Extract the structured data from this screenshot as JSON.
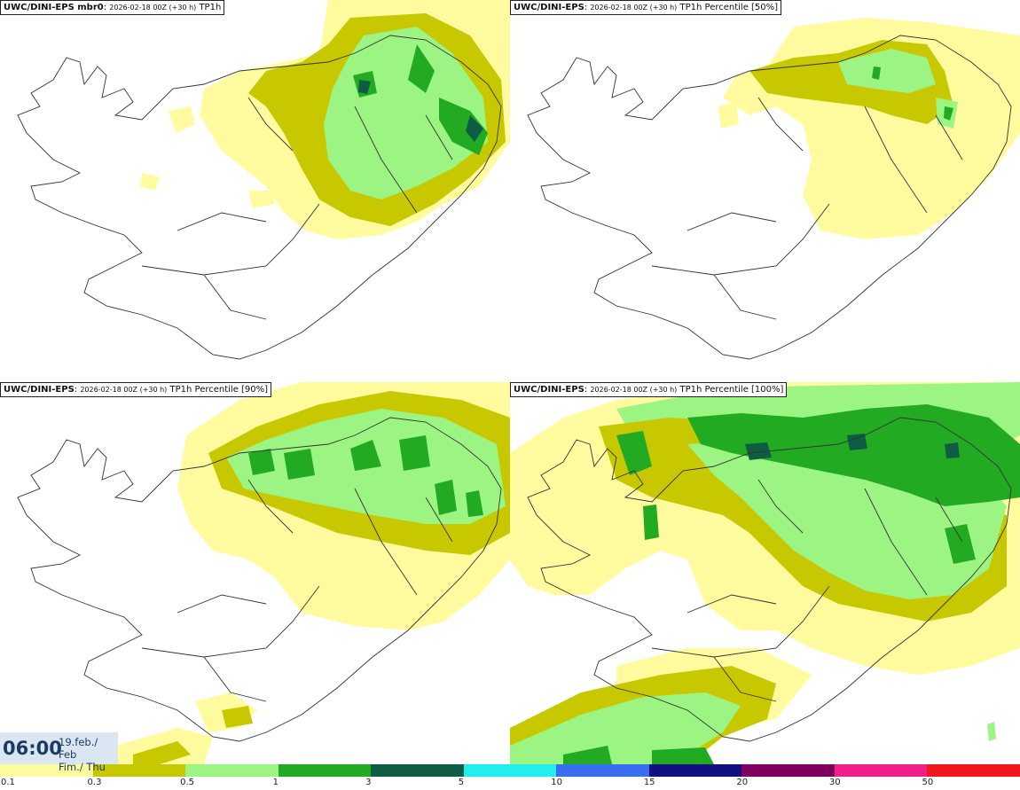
{
  "panels": [
    {
      "model": "UWC/DINI-EPS mbr0",
      "run": "2026-02-18 00Z (+30 h)",
      "field": "TP1h"
    },
    {
      "model": "UWC/DINI-EPS",
      "run": "2026-02-18 00Z (+30 h)",
      "field": "TP1h Percentile [50%]"
    },
    {
      "model": "UWC/DINI-EPS",
      "run": "2026-02-18 00Z (+30 h)",
      "field": "TP1h Percentile [90%]"
    },
    {
      "model": "UWC/DINI-EPS",
      "run": "2026-02-18 00Z (+30 h)",
      "field": "TP1h Percentile [100%]"
    }
  ],
  "valid_time": {
    "hour": "06:00",
    "date_line1": "19.feb./ Feb",
    "date_line2": "Fim./ Thu"
  },
  "legend": {
    "ticks": [
      "0.1",
      "0.3",
      "0.5",
      "1",
      "3",
      "5",
      "10",
      "15",
      "20",
      "30",
      "50"
    ],
    "colors": [
      "#fffb9e",
      "#c8c800",
      "#9cf582",
      "#22aa22",
      "#0e5c44",
      "#22eeee",
      "#3a6ef0",
      "#101080",
      "#800060",
      "#f0208c",
      "#f01818"
    ]
  },
  "colors": {
    "coast": "#333333",
    "roads": "#555555"
  }
}
